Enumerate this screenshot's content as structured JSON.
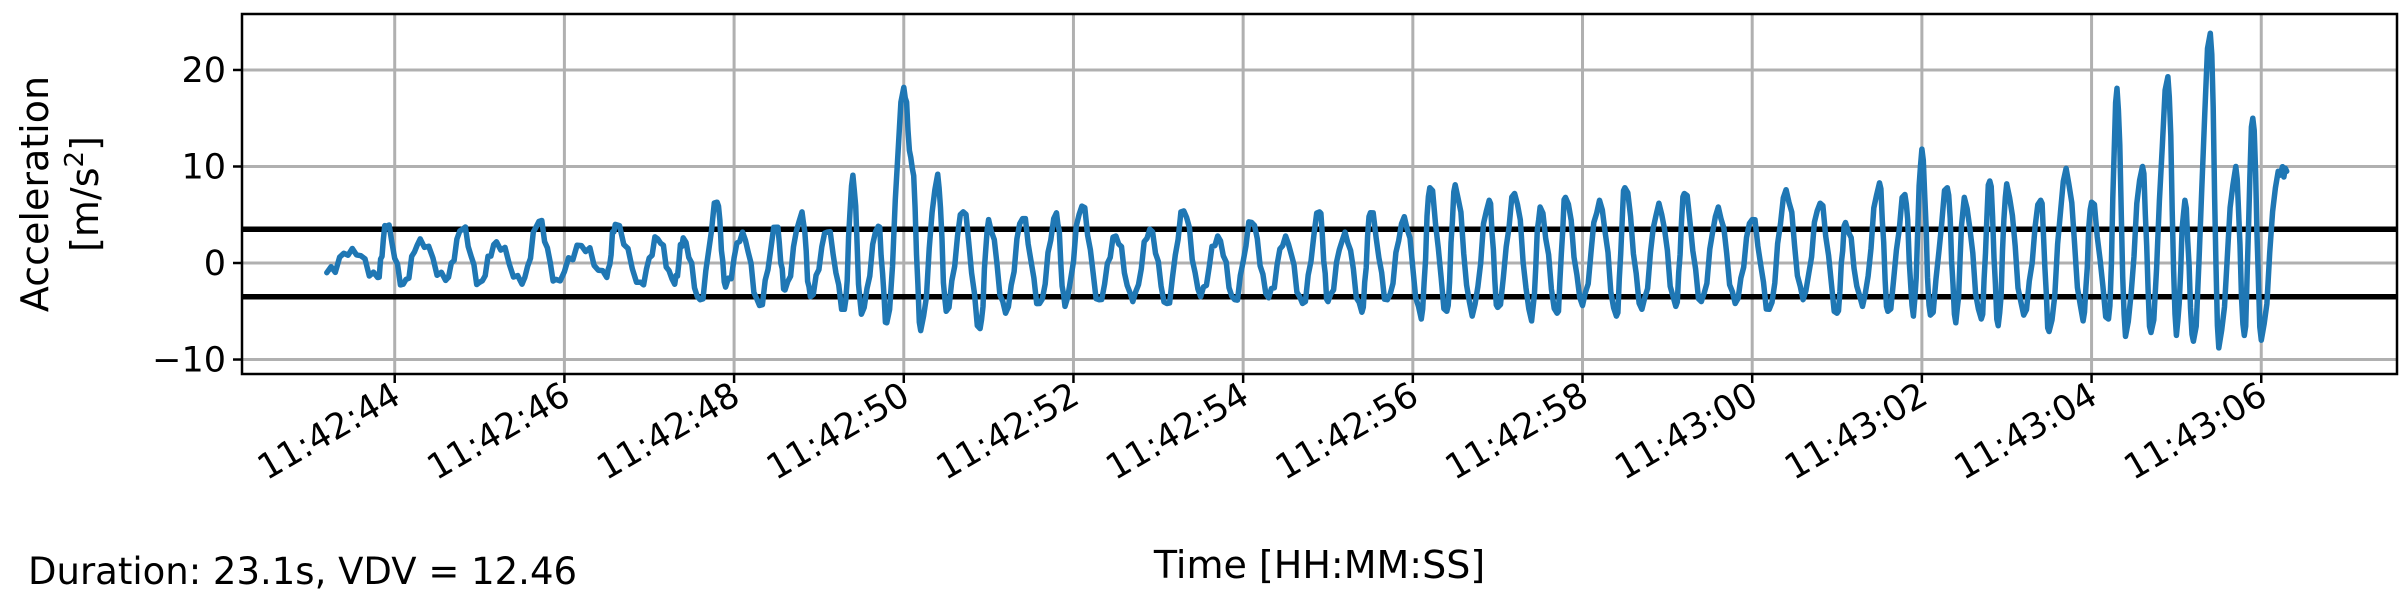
{
  "chart_data": {
    "type": "line",
    "xlabel": "Time [HH:MM:SS]",
    "ylabel": "Acceleration",
    "ylabel_unit": "[m/s²]",
    "x_ticks": [
      "11:42:44",
      "11:42:46",
      "11:42:48",
      "11:42:50",
      "11:42:52",
      "11:42:54",
      "11:42:56",
      "11:42:58",
      "11:43:00",
      "11:43:02",
      "11:43:04",
      "11:43:06"
    ],
    "xlim": [
      "11:42:42.2",
      "11:43:07.6"
    ],
    "y_ticks": [
      -10,
      0,
      10,
      20
    ],
    "ylim": [
      -11.5,
      25.8
    ],
    "grid": true,
    "color": "#1f77b4",
    "threshold_lines": [
      3.5,
      -3.5
    ],
    "threshold_color": "#000000",
    "series": [
      {
        "start": "11:42:43.2",
        "end": "11:43:06.3",
        "points": [
          [
            "11:42:43.2",
            -1
          ],
          [
            "11:42:43.5",
            1.5
          ],
          [
            "11:42:43.8",
            -1.5
          ],
          [
            "11:42:43.9",
            3.8
          ],
          [
            "11:42:44.1",
            -2.2
          ],
          [
            "11:42:44.3",
            2.5
          ],
          [
            "11:42:44.6",
            -1.8
          ],
          [
            "11:42:44.8",
            3.5
          ],
          [
            "11:42:45.0",
            -2
          ],
          [
            "11:42:45.2",
            2.2
          ],
          [
            "11:42:45.5",
            -2.2
          ],
          [
            "11:42:45.7",
            4.3
          ],
          [
            "11:42:45.9",
            -1.7
          ],
          [
            "11:42:46.2",
            1.8
          ],
          [
            "11:42:46.5",
            -1.5
          ],
          [
            "11:42:46.6",
            4
          ],
          [
            "11:42:46.9",
            -2
          ],
          [
            "11:42:47.1",
            2.5
          ],
          [
            "11:42:47.3",
            -2.2
          ],
          [
            "11:42:47.4",
            2.6
          ],
          [
            "11:42:47.6",
            -3.8
          ],
          [
            "11:42:47.8",
            6.3
          ],
          [
            "11:42:47.9",
            -2.5
          ],
          [
            "11:42:48.1",
            3.2
          ],
          [
            "11:42:48.3",
            -4.4
          ],
          [
            "11:42:48.5",
            3.7
          ],
          [
            "11:42:48.6",
            -2.8
          ],
          [
            "11:42:48.8",
            5.3
          ],
          [
            "11:42:48.9",
            -3.5
          ],
          [
            "11:42:49.1",
            3.2
          ],
          [
            "11:42:49.3",
            -4.8
          ],
          [
            "11:42:49.4",
            9.1
          ],
          [
            "11:42:49.5",
            -5.3
          ],
          [
            "11:42:49.7",
            3.8
          ],
          [
            "11:42:49.8",
            -6.2
          ],
          [
            "11:42:50.0",
            18.2
          ],
          [
            "11:42:50.1",
            9.8
          ],
          [
            "11:42:50.2",
            -7
          ],
          [
            "11:42:50.4",
            9.2
          ],
          [
            "11:42:50.5",
            -5
          ],
          [
            "11:42:50.7",
            5.3
          ],
          [
            "11:42:50.9",
            -6.8
          ],
          [
            "11:42:51.0",
            4.5
          ],
          [
            "11:42:51.2",
            -5.2
          ],
          [
            "11:42:51.4",
            4.6
          ],
          [
            "11:42:51.6",
            -4.2
          ],
          [
            "11:42:51.8",
            5.2
          ],
          [
            "11:42:51.9",
            -4.5
          ],
          [
            "11:42:52.1",
            5.9
          ],
          [
            "11:42:52.3",
            -3.8
          ],
          [
            "11:42:52.5",
            2.8
          ],
          [
            "11:42:52.7",
            -4
          ],
          [
            "11:42:52.9",
            3.5
          ],
          [
            "11:42:53.1",
            -4.2
          ],
          [
            "11:42:53.3",
            5.4
          ],
          [
            "11:42:53.5",
            -3.5
          ],
          [
            "11:42:53.7",
            2.8
          ],
          [
            "11:42:53.9",
            -3.8
          ],
          [
            "11:42:54.1",
            4.2
          ],
          [
            "11:42:54.3",
            -3.6
          ],
          [
            "11:42:54.5",
            2.8
          ],
          [
            "11:42:54.7",
            -4.2
          ],
          [
            "11:42:54.9",
            5.3
          ],
          [
            "11:42:55.0",
            -4
          ],
          [
            "11:42:55.2",
            3.2
          ],
          [
            "11:42:55.4",
            -5.1
          ],
          [
            "11:42:55.5",
            5.2
          ],
          [
            "11:42:55.7",
            -3.8
          ],
          [
            "11:42:55.9",
            4.8
          ],
          [
            "11:42:56.1",
            -5.8
          ],
          [
            "11:42:56.2",
            7.8
          ],
          [
            "11:42:56.4",
            -5
          ],
          [
            "11:42:56.5",
            8.1
          ],
          [
            "11:42:56.7",
            -5.5
          ],
          [
            "11:42:56.9",
            6.5
          ],
          [
            "11:42:57.0",
            -4.6
          ],
          [
            "11:42:57.2",
            7.2
          ],
          [
            "11:42:57.4",
            -6
          ],
          [
            "11:42:57.5",
            5.8
          ],
          [
            "11:42:57.7",
            -5.2
          ],
          [
            "11:42:57.8",
            6.8
          ],
          [
            "11:42:58.0",
            -4.4
          ],
          [
            "11:42:58.2",
            6.5
          ],
          [
            "11:42:58.4",
            -5.5
          ],
          [
            "11:42:58.5",
            7.8
          ],
          [
            "11:42:58.7",
            -4.8
          ],
          [
            "11:42:58.9",
            6.2
          ],
          [
            "11:42:59.1",
            -4.5
          ],
          [
            "11:42:59.2",
            7.2
          ],
          [
            "11:42:59.4",
            -4
          ],
          [
            "11:42:59.6",
            5.8
          ],
          [
            "11:42:59.8",
            -4.2
          ],
          [
            "11:43:00.0",
            4.5
          ],
          [
            "11:43:00.2",
            -4.8
          ],
          [
            "11:43:00.4",
            7.6
          ],
          [
            "11:43:00.6",
            -3.8
          ],
          [
            "11:43:00.8",
            6.2
          ],
          [
            "11:43:01.0",
            -5.2
          ],
          [
            "11:43:01.1",
            4.2
          ],
          [
            "11:43:01.3",
            -4.5
          ],
          [
            "11:43:01.5",
            8.3
          ],
          [
            "11:43:01.6",
            -5
          ],
          [
            "11:43:01.8",
            7.1
          ],
          [
            "11:43:01.9",
            -5.5
          ],
          [
            "11:43:02.0",
            11.8
          ],
          [
            "11:43:02.1",
            -5.4
          ],
          [
            "11:43:02.3",
            7.8
          ],
          [
            "11:43:02.4",
            -6.2
          ],
          [
            "11:43:02.5",
            6.8
          ],
          [
            "11:43:02.7",
            -5.8
          ],
          [
            "11:43:02.8",
            8.5
          ],
          [
            "11:43:02.9",
            -6.5
          ],
          [
            "11:43:03.0",
            8.2
          ],
          [
            "11:43:03.2",
            -5.4
          ],
          [
            "11:43:03.4",
            6.5
          ],
          [
            "11:43:03.5",
            -7.1
          ],
          [
            "11:43:03.7",
            9.8
          ],
          [
            "11:43:03.9",
            -6
          ],
          [
            "11:43:04.0",
            6.3
          ],
          [
            "11:43:04.2",
            -5.8
          ],
          [
            "11:43:04.3",
            18.1
          ],
          [
            "11:43:04.4",
            -7.6
          ],
          [
            "11:43:04.6",
            10
          ],
          [
            "11:43:04.7",
            -7.2
          ],
          [
            "11:43:04.9",
            19.3
          ],
          [
            "11:43:05.0",
            -7.5
          ],
          [
            "11:43:05.1",
            6.5
          ],
          [
            "11:43:05.2",
            -8.1
          ],
          [
            "11:43:05.4",
            23.8
          ],
          [
            "11:43:05.5",
            -8.8
          ],
          [
            "11:43:05.7",
            10
          ],
          [
            "11:43:05.8",
            -7.5
          ],
          [
            "11:43:05.9",
            15
          ],
          [
            "11:43:06.0",
            -8
          ],
          [
            "11:43:06.2",
            9.5
          ],
          [
            "11:43:06.3",
            9.5
          ]
        ]
      }
    ]
  },
  "footer": {
    "summary": "Duration: 23.1s, VDV = 12.46"
  }
}
